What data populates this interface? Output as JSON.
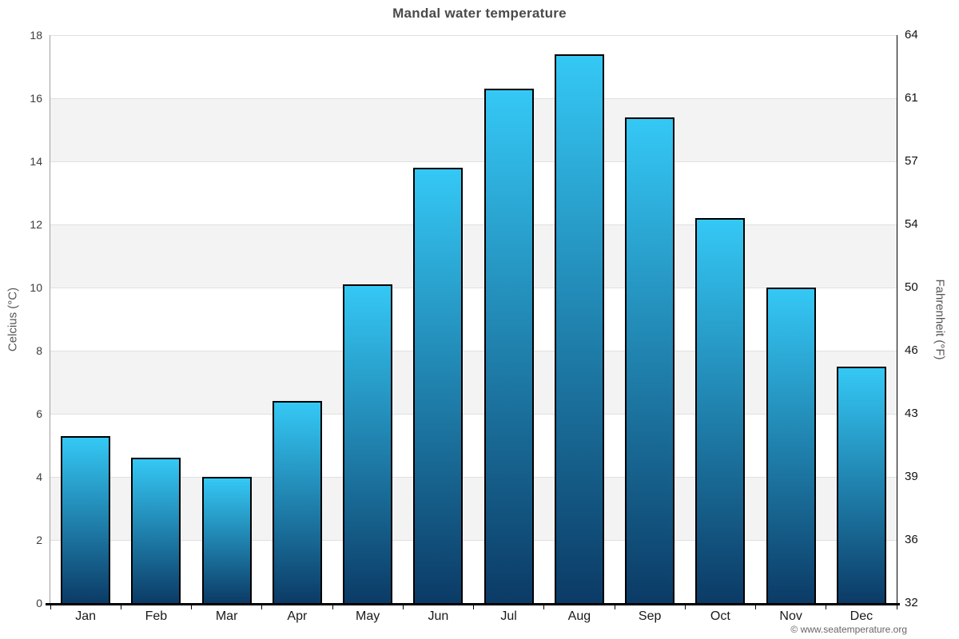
{
  "page": {
    "title": "Mandal water temperature",
    "copyright": "© www.seatemperature.org"
  },
  "chart_data": {
    "type": "bar",
    "title": "Mandal water temperature",
    "categories": [
      "Jan",
      "Feb",
      "Mar",
      "Apr",
      "May",
      "Jun",
      "Jul",
      "Aug",
      "Sep",
      "Oct",
      "Nov",
      "Dec"
    ],
    "values": [
      5.3,
      4.6,
      4.0,
      6.4,
      10.1,
      13.8,
      16.3,
      17.4,
      15.4,
      12.2,
      10.0,
      7.5
    ],
    "unit": "°C",
    "ylabel_left": "Celcius (°C)",
    "ylabel_right": "Fahrenheit (°F)",
    "ylim": [
      0,
      18
    ],
    "yticks_left": [
      0,
      2,
      4,
      6,
      8,
      10,
      12,
      14,
      16,
      18
    ],
    "yticks_right_labels": [
      "32",
      "36",
      "39",
      "43",
      "46",
      "50",
      "54",
      "57",
      "61",
      "64"
    ],
    "xlabel": "",
    "legend": "none",
    "grid": "horizontal gridlines with alternating white/gray bands",
    "colors": {
      "bar_gradient_top": "#35c8f5",
      "bar_gradient_bottom": "#0b3b66",
      "bar_border": "#000000",
      "band_gray": "#f3f3f3",
      "gridline": "#e0e0e0",
      "title_text": "#4a4a4a",
      "axis_text": "#3c3c3c",
      "copyright_text": "#666666"
    }
  }
}
